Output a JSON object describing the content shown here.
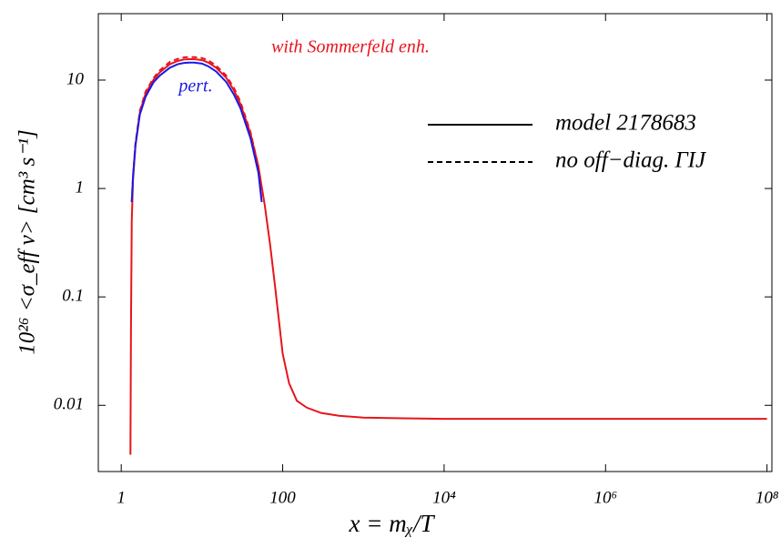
{
  "chart_data": {
    "type": "line",
    "xscale": "log",
    "yscale": "log",
    "xlabel": "x = mᵪ/T",
    "ylabel": "10²⁶ <σ_eff v>  [cm³ s⁻¹]",
    "xlim": [
      0.52,
      115000000
    ],
    "ylim": [
      0.00245,
      41
    ],
    "xticks": [
      1,
      100,
      {
        "value": 10000,
        "label": "10⁴"
      },
      {
        "value": 1000000,
        "label": "10⁶"
      },
      {
        "value": 100000000,
        "label": "10⁸"
      }
    ],
    "yticks": [
      0.01,
      0.1,
      1,
      10
    ],
    "legend_position": "right",
    "legend": [
      {
        "label": "model 2178683",
        "style": "solid"
      },
      {
        "label": "no off−diag. ΓIJ",
        "style": "dashed"
      }
    ],
    "annotations": [
      {
        "text": "with Sommerfeld enh.",
        "color": "#e8141c"
      },
      {
        "text": "pert.",
        "color": "#1a1ae6"
      }
    ],
    "series": [
      {
        "color": "#e8141c",
        "style": "solid",
        "x": [
          1.3,
          1.32,
          1.35,
          1.4,
          1.5,
          1.7,
          2,
          2.5,
          3,
          4,
          5,
          6,
          7,
          8,
          10,
          12,
          15,
          20,
          25,
          30,
          40,
          50,
          60,
          70,
          80,
          90,
          100,
          120,
          150,
          200,
          300,
          500,
          1000,
          3000,
          10000,
          100000,
          1000000,
          10000000,
          100000000
        ],
        "values": [
          0.0035,
          0.05,
          0.5,
          1.2,
          2.5,
          5,
          7.5,
          10,
          11.8,
          14,
          15,
          15.5,
          15.6,
          15.6,
          15.3,
          14.5,
          13,
          10.5,
          8,
          6,
          3.2,
          1.6,
          0.7,
          0.3,
          0.13,
          0.06,
          0.03,
          0.016,
          0.011,
          0.0095,
          0.0085,
          0.008,
          0.0077,
          0.0076,
          0.0075,
          0.0075,
          0.0075,
          0.0075,
          0.0075
        ]
      },
      {
        "color": "#e8141c",
        "style": "dashed",
        "x": [
          1.35,
          1.4,
          1.5,
          1.7,
          2,
          2.5,
          3,
          4,
          5,
          6,
          7,
          8,
          10,
          12,
          15,
          20,
          25,
          30,
          40,
          50,
          55
        ],
        "values": [
          0.75,
          1.3,
          2.6,
          5.2,
          7.8,
          10.4,
          12.3,
          14.7,
          15.7,
          16.2,
          16.3,
          16.3,
          16,
          15.2,
          13.6,
          11,
          8.4,
          6.3,
          3.3,
          1.6,
          0.75
        ]
      },
      {
        "color": "#1a1ae6",
        "style": "solid",
        "x": [
          1.35,
          1.4,
          1.5,
          1.7,
          2,
          2.5,
          3,
          4,
          5,
          6,
          7,
          8,
          10,
          12,
          15,
          20,
          25,
          30,
          40,
          50,
          55
        ],
        "values": [
          0.75,
          1.3,
          2.5,
          4.8,
          7,
          9.5,
          11,
          13,
          14,
          14.4,
          14.5,
          14.5,
          14.2,
          13.4,
          12,
          9.6,
          7.3,
          5.5,
          2.9,
          1.4,
          0.75
        ]
      }
    ]
  }
}
